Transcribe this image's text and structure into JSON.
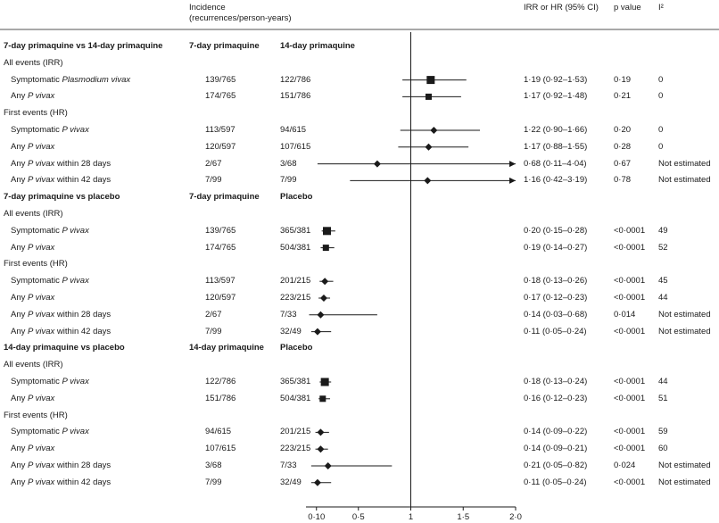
{
  "chart_data": {
    "type": "forest",
    "x_axis": {
      "ticks": [
        0.1,
        0.5,
        1,
        1.5,
        2.0
      ],
      "tick_labels": [
        "0·10",
        "0·5",
        "1",
        "1·5",
        "2·0"
      ],
      "reference_line": 1
    },
    "headers": {
      "incidence": "Incidence",
      "incidence_sub": "(recurrences/person-years)",
      "estimate": "IRR or HR (95% CI)",
      "pvalue": "p value",
      "i2": "I²"
    },
    "rows": [
      {
        "kind": "section",
        "label": "7-day primaquine vs 14-day primaquine",
        "col1": "7-day primaquine",
        "col2": "14-day primaquine"
      },
      {
        "kind": "subhead",
        "label": "All events (IRR)"
      },
      {
        "kind": "data",
        "label": "Symptomatic Plasmodium vivax",
        "col1": "139/765",
        "col2": "122/786",
        "est": 1.19,
        "lo": 0.92,
        "hi": 1.53,
        "marker": "square",
        "ci_text": "1·19 (0·92–1·53)",
        "p": "0·19",
        "i2": "0"
      },
      {
        "kind": "data",
        "label": "Any P vivax",
        "col1": "174/765",
        "col2": "151/786",
        "est": 1.17,
        "lo": 0.92,
        "hi": 1.48,
        "marker": "square-small",
        "ci_text": "1·17 (0·92–1·48)",
        "p": "0·21",
        "i2": "0"
      },
      {
        "kind": "subhead",
        "label": "First events (HR)"
      },
      {
        "kind": "data",
        "label": "Symptomatic P vivax",
        "col1": "113/597",
        "col2": "94/615",
        "est": 1.22,
        "lo": 0.9,
        "hi": 1.66,
        "marker": "diamond",
        "ci_text": "1·22 (0·90–1·66)",
        "p": "0·20",
        "i2": "0"
      },
      {
        "kind": "data",
        "label": "Any P vivax",
        "col1": "120/597",
        "col2": "107/615",
        "est": 1.17,
        "lo": 0.88,
        "hi": 1.55,
        "marker": "diamond",
        "ci_text": "1·17 (0·88–1·55)",
        "p": "0·28",
        "i2": "0"
      },
      {
        "kind": "data",
        "label": "Any P vivax within 28 days",
        "col1": "2/67",
        "col2": "3/68",
        "est": 0.68,
        "lo": 0.11,
        "hi": 4.04,
        "marker": "diamond",
        "arrow": true,
        "ci_text": "0·68 (0·11–4·04)",
        "p": "0·67",
        "i2": "Not estimated"
      },
      {
        "kind": "data",
        "label": "Any P vivax within 42 days",
        "col1": "7/99",
        "col2": "7/99",
        "est": 1.16,
        "lo": 0.42,
        "hi": 3.19,
        "marker": "diamond",
        "arrow": true,
        "ci_text": "1·16 (0·42–3·19)",
        "p": "0·78",
        "i2": "Not estimated"
      },
      {
        "kind": "section",
        "label": "7-day primaquine vs placebo",
        "col1": "7-day primaquine",
        "col2": "Placebo"
      },
      {
        "kind": "subhead",
        "label": "All events (IRR)"
      },
      {
        "kind": "data",
        "label": "Symptomatic P vivax",
        "col1": "139/765",
        "col2": "365/381",
        "est": 0.2,
        "lo": 0.15,
        "hi": 0.28,
        "marker": "square",
        "ci_text": "0·20 (0·15–0·28)",
        "p": "<0·0001",
        "i2": "49"
      },
      {
        "kind": "data",
        "label": "Any P vivax",
        "col1": "174/765",
        "col2": "504/381",
        "est": 0.19,
        "lo": 0.14,
        "hi": 0.27,
        "marker": "square-small",
        "ci_text": "0·19 (0·14–0·27)",
        "p": "<0·0001",
        "i2": "52"
      },
      {
        "kind": "subhead",
        "label": "First events (HR)"
      },
      {
        "kind": "data",
        "label": "Symptomatic P vivax",
        "col1": "113/597",
        "col2": "201/215",
        "est": 0.18,
        "lo": 0.13,
        "hi": 0.26,
        "marker": "diamond",
        "ci_text": "0·18 (0·13–0·26)",
        "p": "<0·0001",
        "i2": "45"
      },
      {
        "kind": "data",
        "label": "Any P vivax",
        "col1": "120/597",
        "col2": "223/215",
        "est": 0.17,
        "lo": 0.12,
        "hi": 0.23,
        "marker": "diamond",
        "ci_text": "0·17 (0·12–0·23)",
        "p": "<0·0001",
        "i2": "44"
      },
      {
        "kind": "data",
        "label": "Any P vivax within 28 days",
        "col1": "2/67",
        "col2": "7/33",
        "est": 0.14,
        "lo": 0.03,
        "hi": 0.68,
        "marker": "diamond",
        "ci_text": "0·14 (0·03–0·68)",
        "p": "0·014",
        "i2": "Not estimated"
      },
      {
        "kind": "data",
        "label": "Any P vivax within 42 days",
        "col1": "7/99",
        "col2": "32/49",
        "est": 0.11,
        "lo": 0.05,
        "hi": 0.24,
        "marker": "diamond",
        "ci_text": "0·11 (0·05–0·24)",
        "p": "<0·0001",
        "i2": "Not estimated"
      },
      {
        "kind": "section",
        "label": "14-day primaquine vs placebo",
        "col1": "14-day primaquine",
        "col2": "Placebo"
      },
      {
        "kind": "subhead",
        "label": "All events (IRR)"
      },
      {
        "kind": "data",
        "label": "Symptomatic P vivax",
        "col1": "122/786",
        "col2": "365/381",
        "est": 0.18,
        "lo": 0.13,
        "hi": 0.24,
        "marker": "square",
        "ci_text": "0·18 (0·13–0·24)",
        "p": "<0·0001",
        "i2": "44"
      },
      {
        "kind": "data",
        "label": "Any P vivax",
        "col1": "151/786",
        "col2": "504/381",
        "est": 0.16,
        "lo": 0.12,
        "hi": 0.23,
        "marker": "square-small",
        "ci_text": "0·16 (0·12–0·23)",
        "p": "<0·0001",
        "i2": "51"
      },
      {
        "kind": "subhead",
        "label": "First events (HR)"
      },
      {
        "kind": "data",
        "label": "Symptomatic P vivax",
        "col1": "94/615",
        "col2": "201/215",
        "est": 0.14,
        "lo": 0.09,
        "hi": 0.22,
        "marker": "diamond",
        "ci_text": "0·14 (0·09–0·22)",
        "p": "<0·0001",
        "i2": "59"
      },
      {
        "kind": "data",
        "label": "Any P vivax",
        "col1": "107/615",
        "col2": "223/215",
        "est": 0.14,
        "lo": 0.09,
        "hi": 0.21,
        "marker": "diamond",
        "ci_text": "0·14 (0·09–0·21)",
        "p": "<0·0001",
        "i2": "60"
      },
      {
        "kind": "data",
        "label": "Any P vivax within 28 days",
        "col1": "3/68",
        "col2": "7/33",
        "est": 0.21,
        "lo": 0.05,
        "hi": 0.82,
        "marker": "diamond",
        "ci_text": "0·21 (0·05–0·82)",
        "p": "0·024",
        "i2": "Not estimated"
      },
      {
        "kind": "data",
        "label": "Any P vivax within 42 days",
        "col1": "7/99",
        "col2": "32/49",
        "est": 0.11,
        "lo": 0.05,
        "hi": 0.24,
        "marker": "diamond",
        "ci_text": "0·11 (0·05–0·24)",
        "p": "<0·0001",
        "i2": "Not estimated"
      }
    ]
  }
}
